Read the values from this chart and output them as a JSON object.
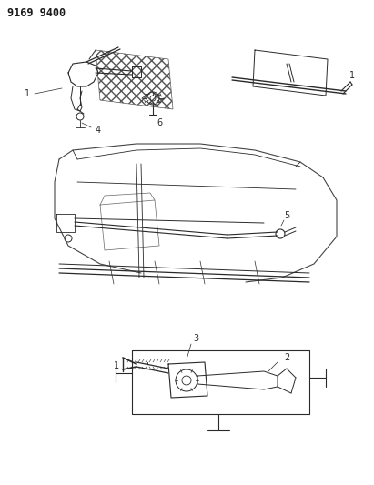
{
  "title": "9169 9400",
  "background_color": "#ffffff",
  "line_color": "#2a2a2a",
  "label_color": "#1a1a1a",
  "label_fontsize": 7,
  "figure_width": 4.11,
  "figure_height": 5.33,
  "dpi": 100
}
